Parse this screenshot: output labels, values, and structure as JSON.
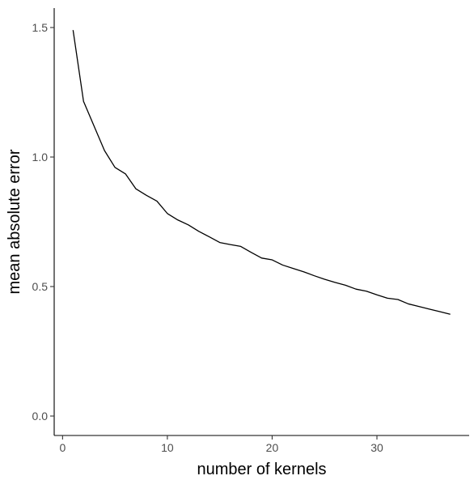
{
  "chart_data": {
    "type": "line",
    "title": "",
    "xlabel": "number of kernels",
    "ylabel": "mean absolute error",
    "xlim": [
      -0.8,
      38.8
    ],
    "ylim": [
      -0.075,
      1.575
    ],
    "x_ticks": [
      0,
      10,
      20,
      30
    ],
    "x_tick_labels": [
      "0",
      "10",
      "20",
      "30"
    ],
    "y_ticks": [
      0.0,
      0.5,
      1.0,
      1.5
    ],
    "y_tick_labels": [
      "0.0",
      "0.5",
      "1.0",
      "1.5"
    ],
    "grid": false,
    "legend": "none",
    "line_color": "#000000",
    "series": [
      {
        "x": [
          1,
          2,
          3,
          4,
          5,
          6,
          7,
          8,
          9,
          10,
          11,
          12,
          13,
          14,
          15,
          16,
          17,
          18,
          19,
          20,
          21,
          22,
          23,
          24,
          25,
          26,
          27,
          28,
          29,
          30,
          31,
          32,
          33,
          34,
          35,
          36,
          37
        ],
        "values": [
          1.49,
          1.215,
          1.12,
          1.025,
          0.96,
          0.935,
          0.877,
          0.852,
          0.83,
          0.782,
          0.757,
          0.738,
          0.713,
          0.692,
          0.67,
          0.662,
          0.655,
          0.632,
          0.61,
          0.603,
          0.583,
          0.57,
          0.557,
          0.542,
          0.528,
          0.516,
          0.505,
          0.49,
          0.482,
          0.468,
          0.455,
          0.45,
          0.433,
          0.423,
          0.413,
          0.403,
          0.393
        ]
      }
    ]
  }
}
